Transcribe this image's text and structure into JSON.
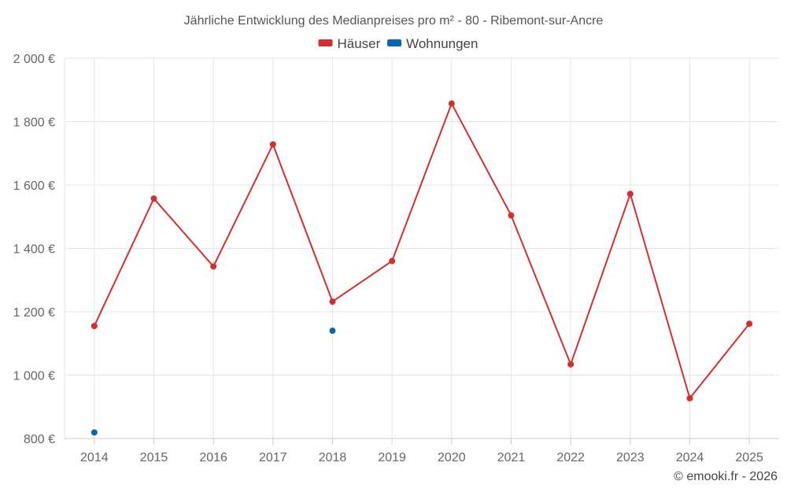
{
  "chart_data": {
    "type": "line",
    "title": "Jährliche Entwicklung des Medianpreises pro m² - 80 - Ribemont-sur-Ancre",
    "categories": [
      "2014",
      "2015",
      "2016",
      "2017",
      "2018",
      "2019",
      "2020",
      "2021",
      "2022",
      "2023",
      "2024",
      "2025"
    ],
    "series": [
      {
        "name": "Häuser",
        "color": "#d32f2f",
        "values": [
          1155,
          1557,
          1343,
          1728,
          1232,
          1360,
          1857,
          1504,
          1034,
          1572,
          927,
          1162
        ]
      },
      {
        "name": "Wohnungen",
        "color": "#0a66a8",
        "values": [
          819,
          null,
          null,
          null,
          1140,
          null,
          null,
          null,
          null,
          null,
          null,
          null
        ]
      }
    ],
    "ylim": [
      800,
      2000
    ],
    "yticks": [
      800,
      1000,
      1200,
      1400,
      1600,
      1800,
      2000
    ],
    "ytick_labels": [
      "800 €",
      "1 000 €",
      "1 200 €",
      "1 400 €",
      "1 600 €",
      "1 800 €",
      "2 000 €"
    ],
    "xlabel": "",
    "ylabel": "",
    "grid": true,
    "legend_position": "top-center"
  },
  "credit": "© emooki.fr - 2026"
}
